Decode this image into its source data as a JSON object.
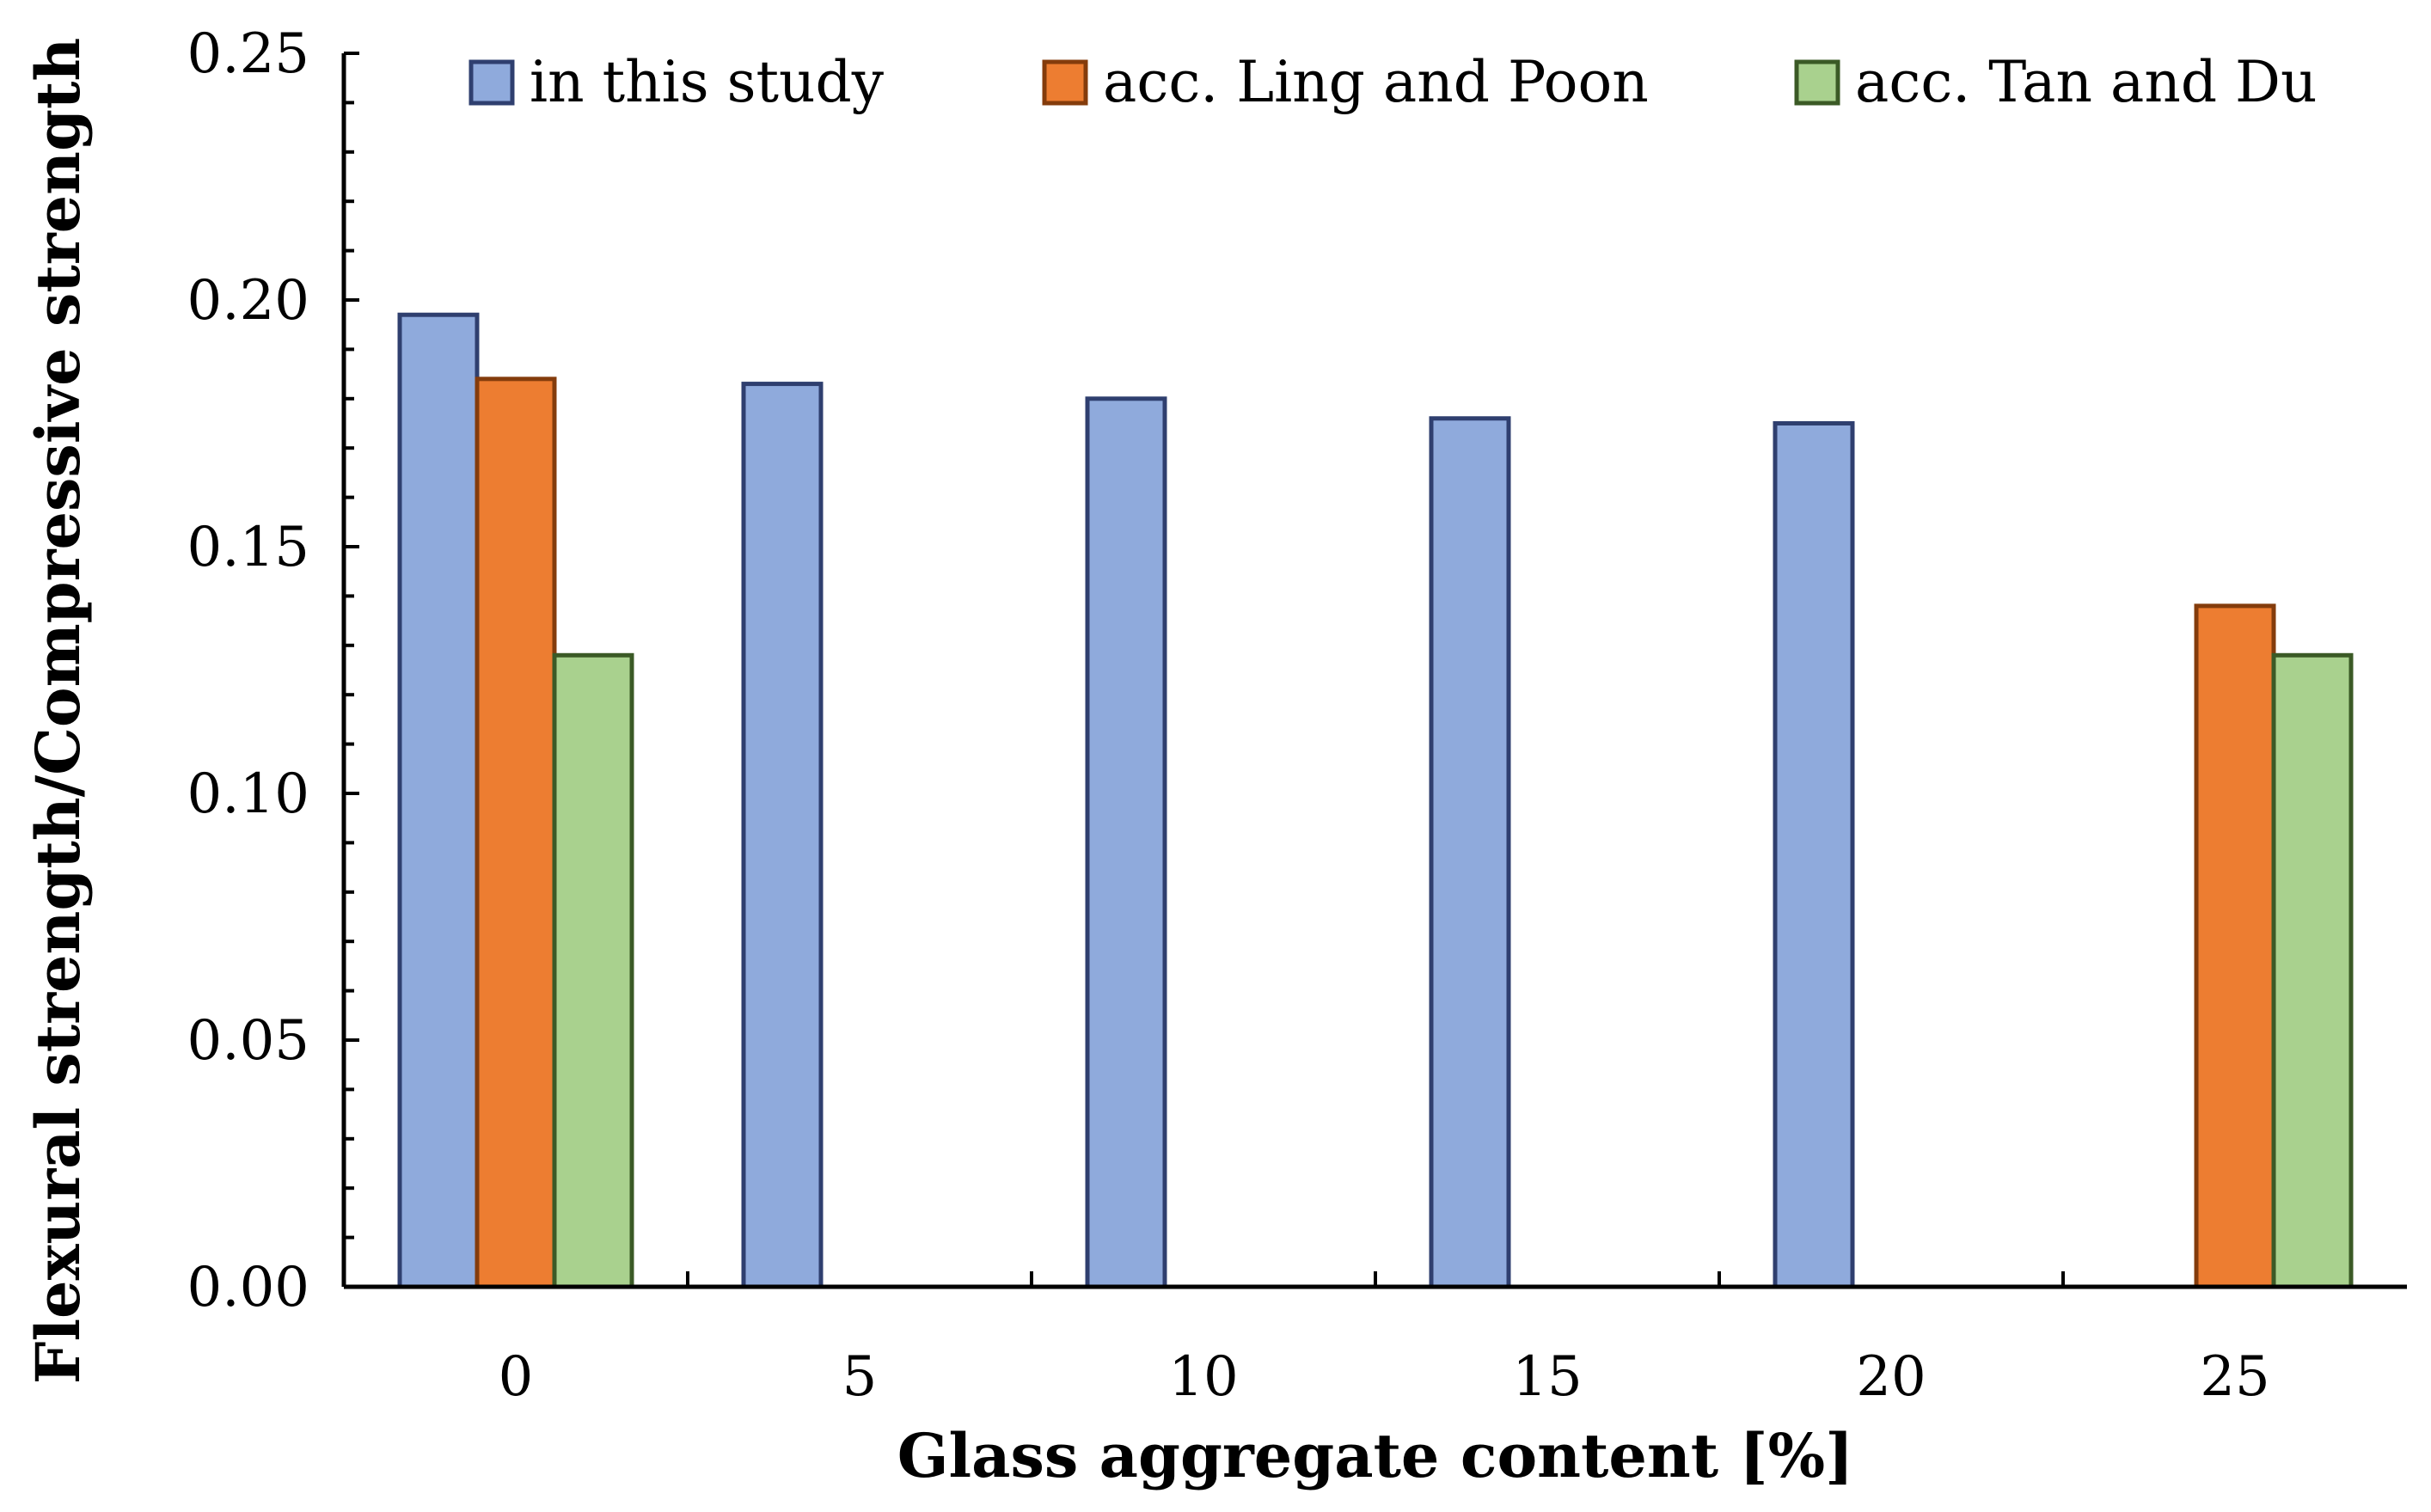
{
  "chart_data": {
    "type": "bar",
    "title": "",
    "xlabel": "Glass aggregate content [%]",
    "ylabel": "Flexural strength/Compressive strength",
    "categories": [
      "0",
      "5",
      "10",
      "15",
      "20",
      "25"
    ],
    "ylim": [
      0,
      0.25
    ],
    "yticks": [
      "0.00",
      "0.05",
      "0.10",
      "0.15",
      "0.20",
      "0.25"
    ],
    "grid": false,
    "legend_position": "top",
    "series": [
      {
        "name": "in this study",
        "values": [
          0.197,
          0.183,
          0.18,
          0.176,
          0.175,
          null
        ],
        "fill": "#8faadc",
        "stroke": "#2f3f6f"
      },
      {
        "name": "acc. Ling and Poon",
        "values": [
          0.184,
          null,
          null,
          null,
          null,
          0.138
        ],
        "fill": "#ed7d31",
        "stroke": "#843c0c"
      },
      {
        "name": "acc. Tan and Du",
        "values": [
          0.128,
          null,
          null,
          null,
          null,
          0.128
        ],
        "fill": "#a9d18e",
        "stroke": "#3b5a26"
      }
    ]
  }
}
